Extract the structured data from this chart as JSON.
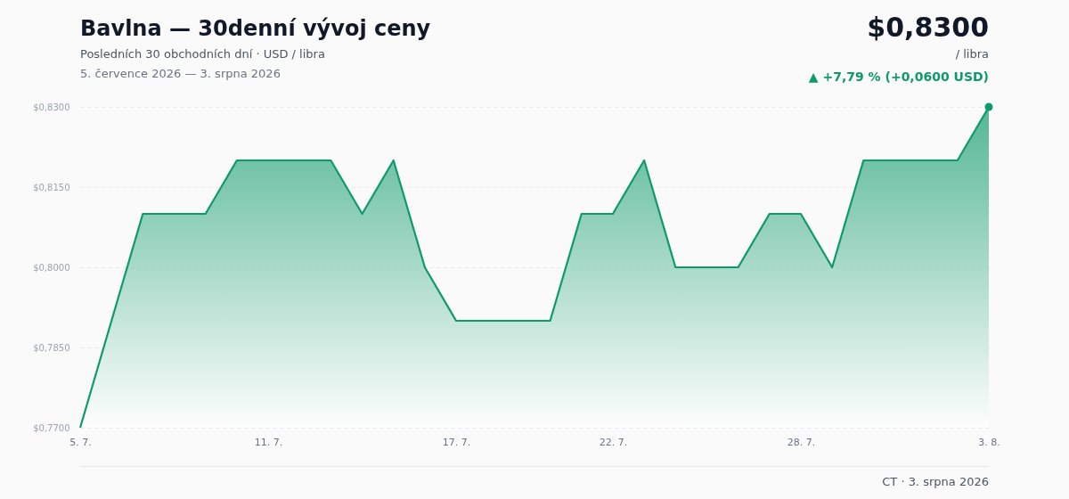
{
  "chart_data": {
    "type": "area",
    "title": "Bavlna — 30denní vývoj ceny",
    "subtitle": "Posledních 30 obchodních dní · USD / libra",
    "annotations": [
      "5. července 2026 — 3. srpna 2026",
      {
        "text": "$0,8300",
        "x": "3. 8.",
        "y": 0.83
      },
      "/ libra",
      "▲ +7,79 % (+0,0600 USD)",
      "CT · 3. srpna 2026"
    ],
    "categories": [
      "5. 7.",
      null,
      null,
      null,
      null,
      null,
      "11. 7.",
      null,
      null,
      null,
      null,
      null,
      "17. 7.",
      null,
      null,
      null,
      null,
      "22. 7.",
      null,
      null,
      null,
      null,
      null,
      "28. 7.",
      null,
      null,
      null,
      null,
      null,
      "3. 8."
    ],
    "series": [
      {
        "color": "#0e9a6a",
        "values": [
          0.77,
          0.79,
          0.81,
          0.81,
          0.81,
          0.82,
          0.82,
          0.82,
          0.82,
          0.81,
          0.82,
          0.8,
          0.79,
          0.79,
          0.79,
          0.79,
          0.81,
          0.81,
          0.82,
          0.8,
          0.8,
          0.8,
          0.81,
          0.81,
          0.8,
          0.82,
          0.82,
          0.82,
          0.82,
          0.83
        ]
      }
    ],
    "ylim": [
      0.77,
      0.83
    ],
    "yticks": [
      {
        "value": 0.77,
        "label": "$0,7700"
      },
      {
        "value": 0.785,
        "label": "$0,7850"
      },
      {
        "value": 0.8,
        "label": "$0,8000"
      },
      {
        "value": 0.815,
        "label": "$0,8150"
      },
      {
        "value": 0.83,
        "label": "$0,8300"
      }
    ],
    "grid": "y",
    "marker": "none"
  }
}
